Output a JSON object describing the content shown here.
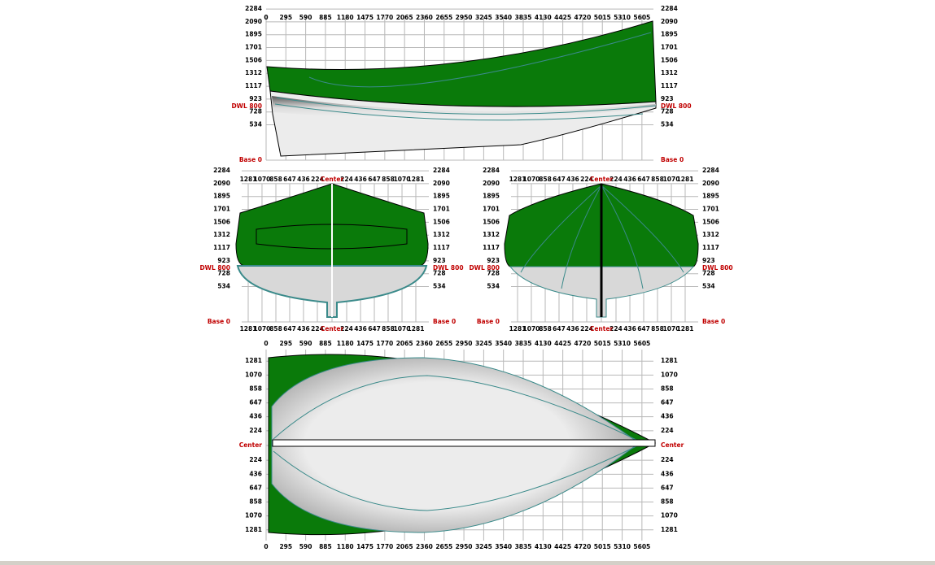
{
  "profile": {
    "x_ticks": [
      0,
      295,
      590,
      885,
      1180,
      1475,
      1770,
      2065,
      2360,
      2655,
      2950,
      3245,
      3540,
      3835,
      4130,
      4425,
      4720,
      5015,
      5310,
      5605
    ],
    "y_ticks": [
      2284,
      2090,
      1895,
      1701,
      1506,
      1312,
      1117,
      923,
      728,
      534
    ],
    "waterline": "DWL 800",
    "base": "Base 0"
  },
  "body_plan_aft": {
    "half_breadths": [
      224,
      436,
      647,
      858,
      1070,
      1281
    ],
    "center": "Center",
    "y_ticks": [
      2284,
      2090,
      1895,
      1701,
      1506,
      1312,
      1117,
      923,
      728,
      534
    ],
    "waterline": "DWL 800",
    "base": "Base 0"
  },
  "body_plan_fwd": {
    "half_breadths": [
      224,
      436,
      647,
      858,
      1070,
      1281
    ],
    "center": "Center",
    "y_ticks": [
      2284,
      2090,
      1895,
      1701,
      1506,
      1312,
      1117,
      923,
      728,
      534
    ],
    "waterline": "DWL 800",
    "base": "Base 0"
  },
  "plan": {
    "x_ticks": [
      0,
      295,
      590,
      885,
      1180,
      1475,
      1770,
      2065,
      2360,
      2655,
      2950,
      3245,
      3540,
      3835,
      4130,
      4425,
      4720,
      5015,
      5310,
      5605
    ],
    "half_breadths": [
      224,
      436,
      647,
      858,
      1070,
      1281
    ],
    "center": "Center"
  }
}
